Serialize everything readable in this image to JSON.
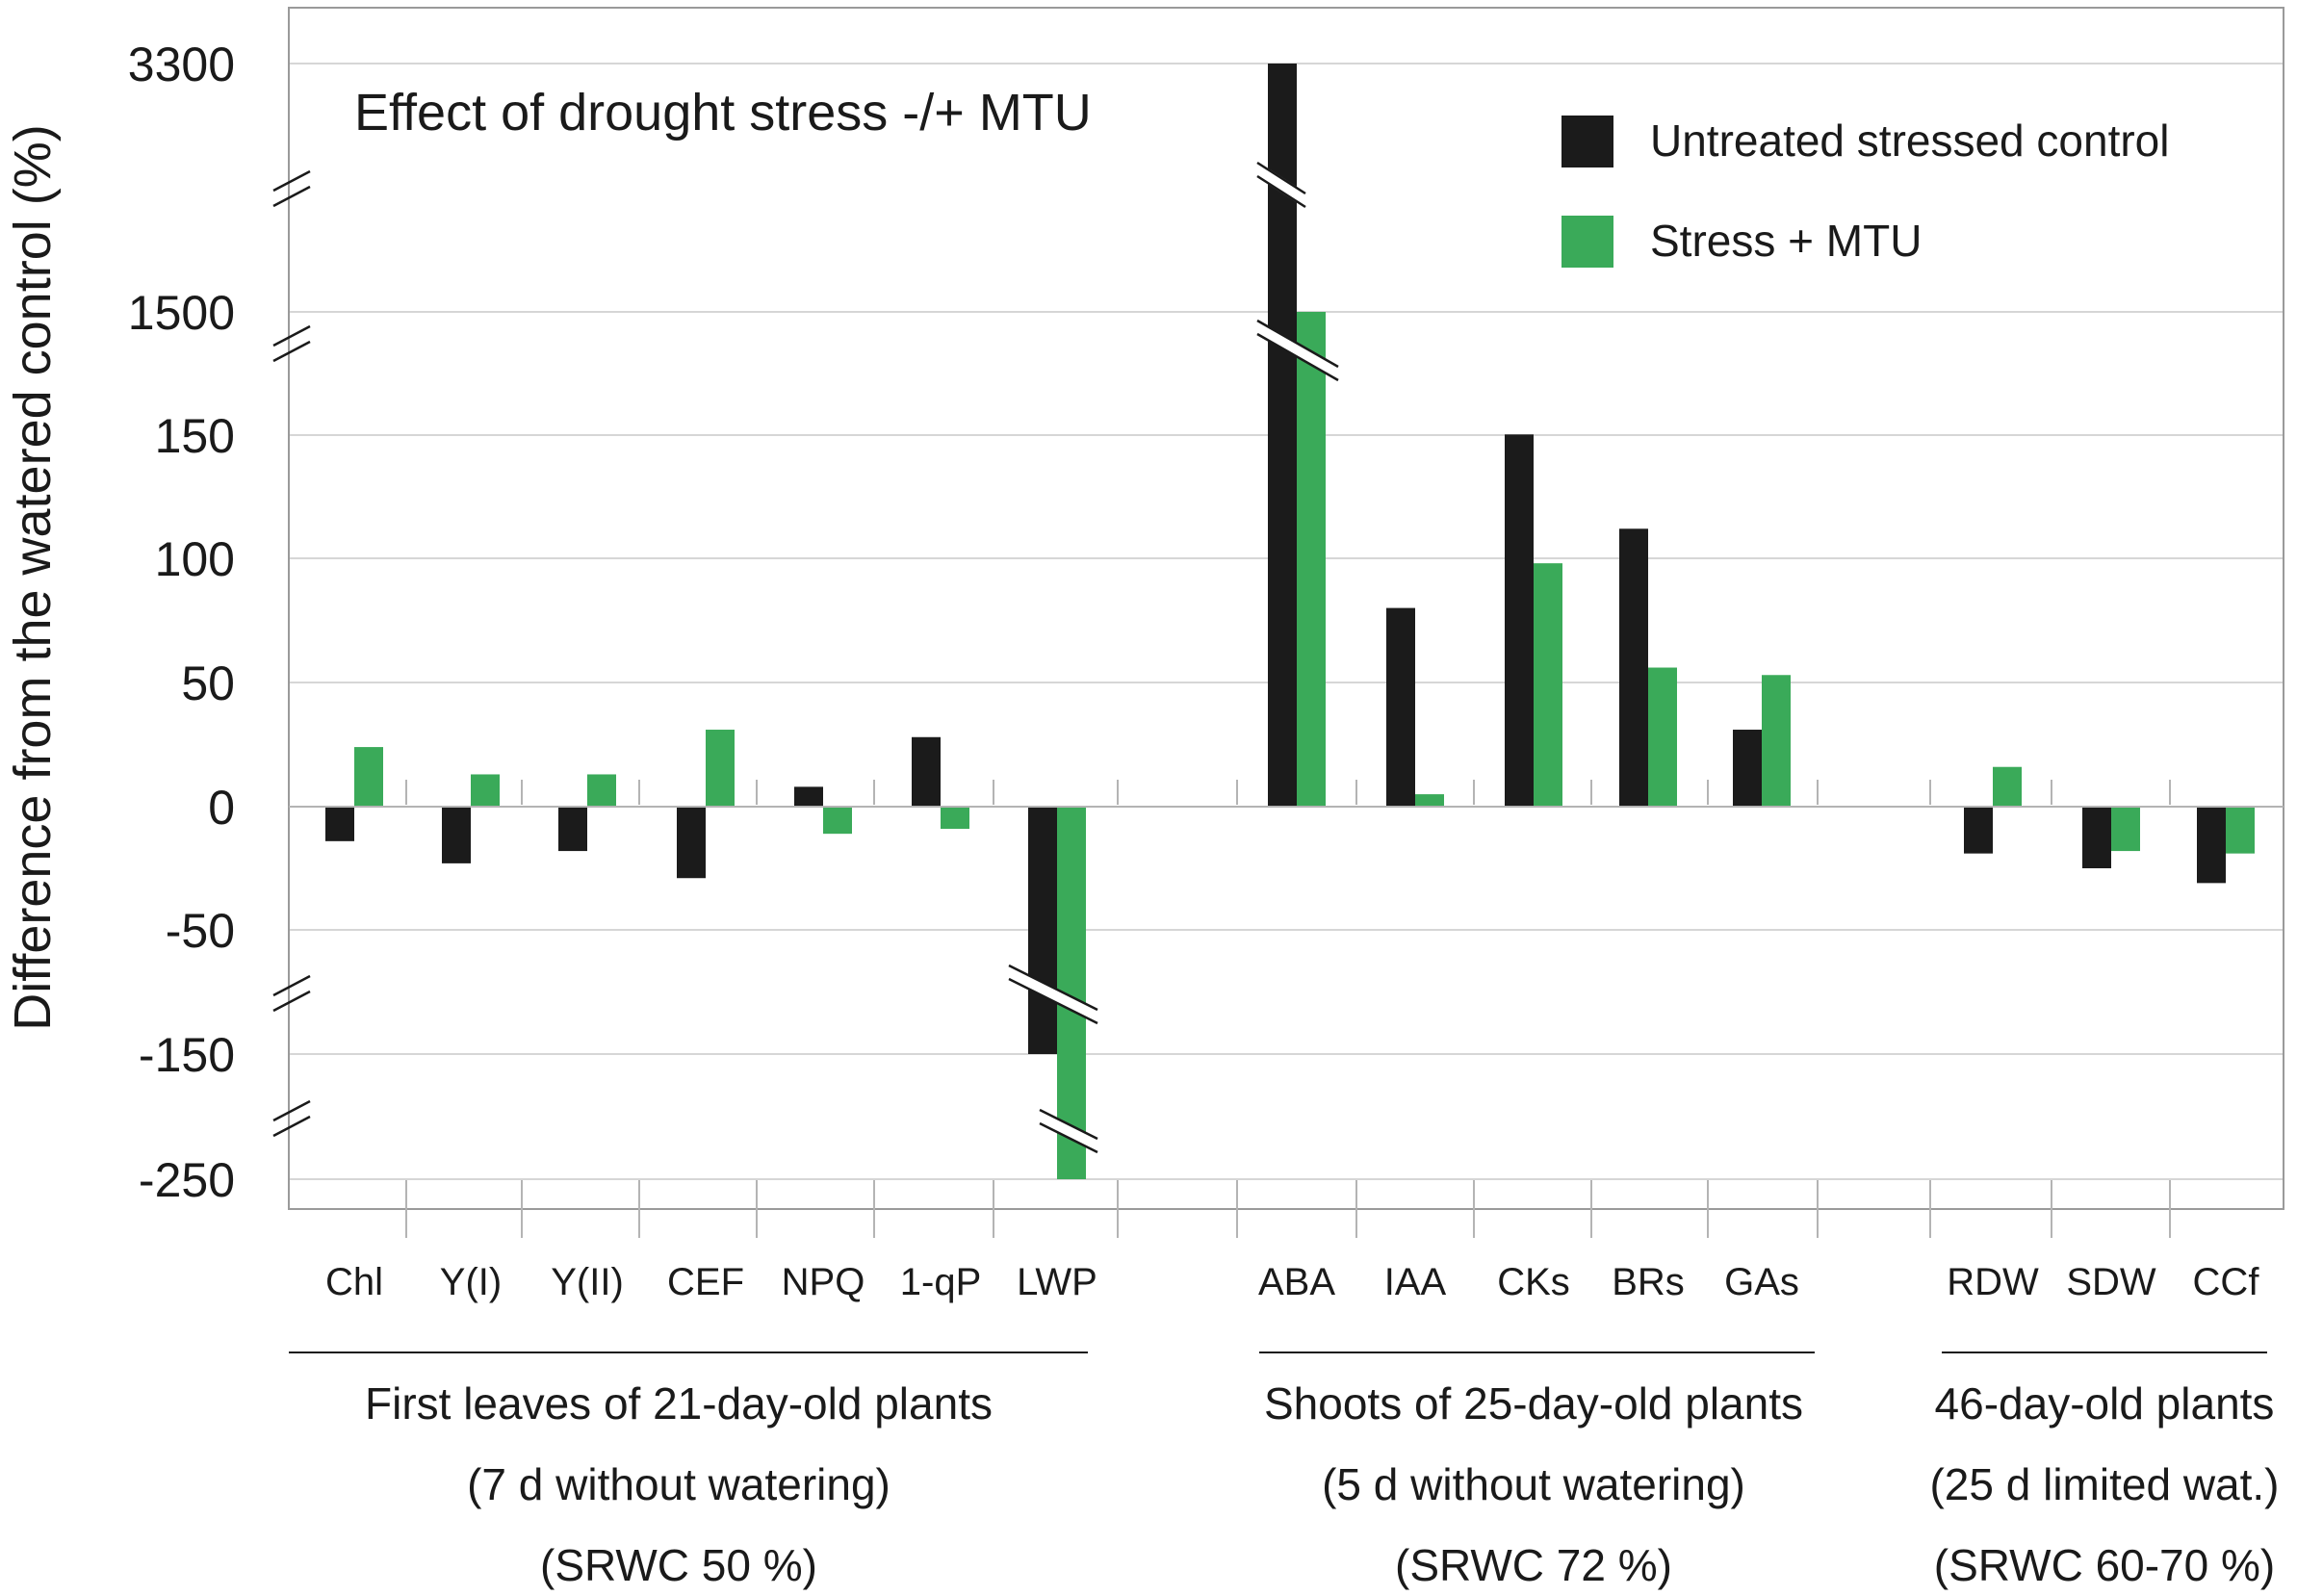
{
  "chart_data": {
    "type": "bar",
    "title": "Effect of drought stress -/+ MTU",
    "ylabel": "Difference from the watered control (%)",
    "xlabel": "",
    "y_axis_note": "broken axis with scale discontinuities between 150 and 1500 and between 1500 and 3300, and below -50 and -150",
    "y_tick_labels": [
      "3300",
      "1500",
      "150",
      "100",
      "50",
      "0",
      "-50",
      "-150",
      "-250"
    ],
    "y_tick_values": [
      3300,
      1500,
      150,
      100,
      50,
      0,
      -50,
      -150,
      -250
    ],
    "categories": [
      "Chl",
      "Y(I)",
      "Y(II)",
      "CEF",
      "NPQ",
      "1-qP",
      "LWP",
      "ABA",
      "IAA",
      "CKs",
      "BRs",
      "GAs",
      "RDW",
      "SDW",
      "CCf"
    ],
    "series": [
      {
        "name": "Untreated stressed control",
        "color": "#1b1b1b",
        "values": [
          -14,
          -23,
          -18,
          -29,
          8,
          28,
          -150,
          3300,
          80,
          157,
          112,
          31,
          -19,
          -25,
          -31
        ]
      },
      {
        "name": "Stress + MTU",
        "color": "#3aaa59",
        "values": [
          24,
          13,
          13,
          31,
          -11,
          -9,
          -250,
          1500,
          5,
          98,
          56,
          53,
          16,
          -18,
          -19
        ]
      }
    ],
    "legend": {
      "position": "top-right",
      "entries": [
        "Untreated stressed control",
        "Stress + MTU"
      ]
    },
    "groups": [
      {
        "name": "First leaves of 21-day-old plants",
        "line2": "(7 d without watering)",
        "line3": "(SRWC 50 %)",
        "categories": [
          "Chl",
          "Y(I)",
          "Y(II)",
          "CEF",
          "NPQ",
          "1-qP",
          "LWP"
        ]
      },
      {
        "name": "Shoots of 25-day-old plants",
        "line2": "(5 d without watering)",
        "line3": "(SRWC 72 %)",
        "categories": [
          "ABA",
          "IAA",
          "CKs",
          "BRs",
          "GAs"
        ]
      },
      {
        "name": "46-day-old plants",
        "line2": "(25 d limited wat.)",
        "line3": "(SRWC 60-70 %)",
        "categories": [
          "RDW",
          "SDW",
          "CCf"
        ]
      }
    ],
    "grid": true
  }
}
